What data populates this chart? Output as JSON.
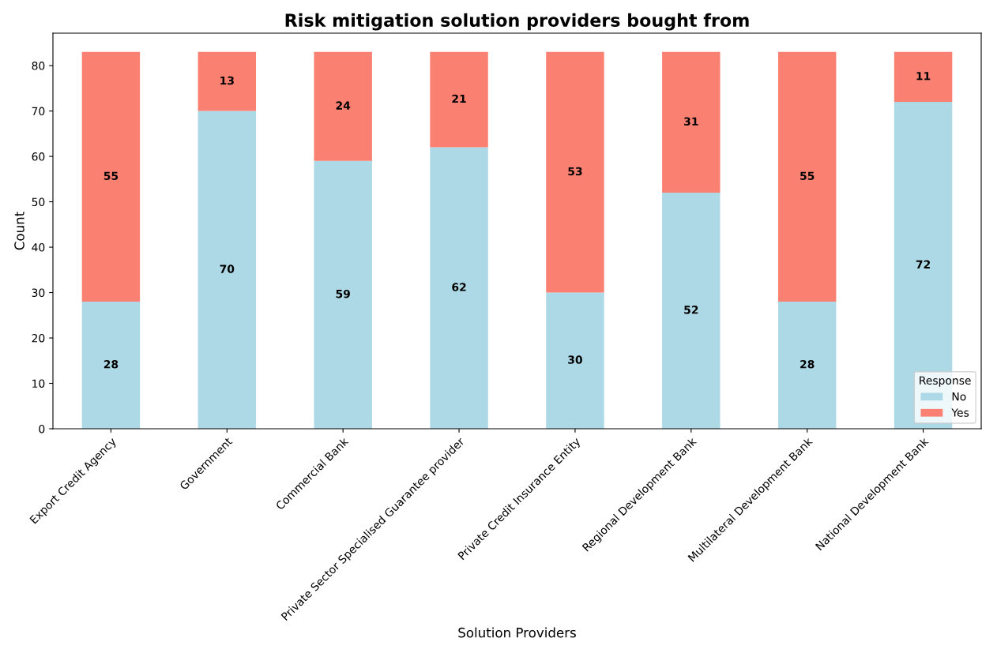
{
  "chart_data": {
    "type": "bar",
    "title": "Risk mitigation solution providers bought from",
    "xlabel": "Solution Providers",
    "ylabel": "Count",
    "legend_title": "Response",
    "categories": [
      "Export Credit Agency",
      "Government",
      "Commercial Bank",
      "Private Sector Specialised Guarantee provider",
      "Private Credit Insurance Entity",
      "Regional Development Bank",
      "Multilateral Development Bank",
      "National Development Bank"
    ],
    "series": [
      {
        "name": "No",
        "color": "#add8e6",
        "values": [
          28,
          70,
          59,
          62,
          30,
          52,
          28,
          72
        ]
      },
      {
        "name": "Yes",
        "color": "#fa8072",
        "values": [
          55,
          13,
          24,
          21,
          53,
          31,
          55,
          11
        ]
      }
    ],
    "stacked": true,
    "data_labels": true,
    "ylim": [
      0,
      87.15
    ],
    "yticks": [
      0,
      10,
      20,
      30,
      40,
      50,
      60,
      70,
      80
    ],
    "grid": false,
    "legend": "bottom right"
  }
}
